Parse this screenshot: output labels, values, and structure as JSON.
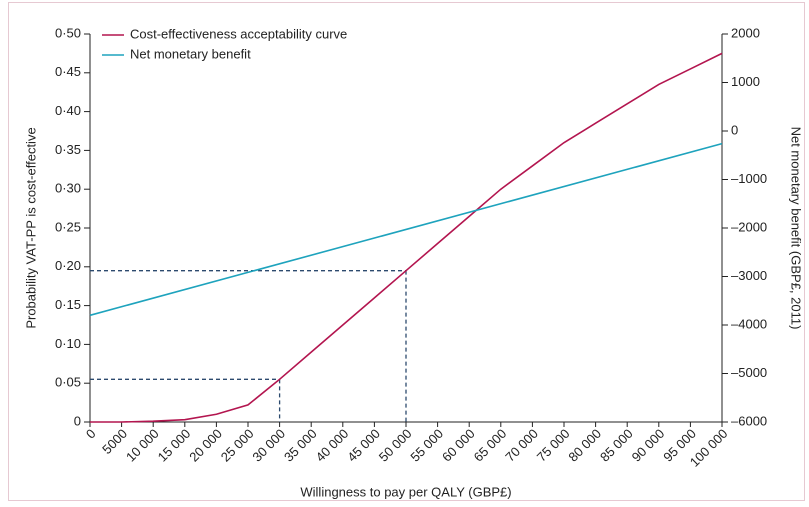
{
  "chart_data": {
    "type": "line",
    "xlabel": "Willingness to pay per QALY (GBP£)",
    "ylabel": "Probability VAT-PP is cost-effective",
    "y2label": "Net monetary benefit (GBP£, 2011)",
    "xlim": [
      0,
      100000
    ],
    "xticks": [
      0,
      5000,
      {
        "value": 10000,
        "label": "10 000"
      },
      {
        "value": 15000,
        "label": "15 000"
      },
      {
        "value": 20000,
        "label": "20 000"
      },
      {
        "value": 25000,
        "label": "25 000"
      },
      {
        "value": 30000,
        "label": "30 000"
      },
      {
        "value": 35000,
        "label": "35 000"
      },
      {
        "value": 40000,
        "label": "40 000"
      },
      {
        "value": 45000,
        "label": "45 000"
      },
      {
        "value": 50000,
        "label": "50 000"
      },
      {
        "value": 55000,
        "label": "55 000"
      },
      {
        "value": 60000,
        "label": "60 000"
      },
      {
        "value": 65000,
        "label": "65 000"
      },
      {
        "value": 70000,
        "label": "70 000"
      },
      {
        "value": 75000,
        "label": "75 000"
      },
      {
        "value": 80000,
        "label": "80 000"
      },
      {
        "value": 85000,
        "label": "85 000"
      },
      {
        "value": 90000,
        "label": "90 000"
      },
      {
        "value": 95000,
        "label": "95 000"
      },
      {
        "value": 100000,
        "label": "100 000"
      }
    ],
    "ylim": [
      0,
      0.5
    ],
    "yticks": [
      0,
      {
        "value": 0.05,
        "label": "0·05"
      },
      {
        "value": 0.1,
        "label": "0·10"
      },
      {
        "value": 0.15,
        "label": "0·15"
      },
      {
        "value": 0.2,
        "label": "0·20"
      },
      {
        "value": 0.25,
        "label": "0·25"
      },
      {
        "value": 0.3,
        "label": "0·30"
      },
      {
        "value": 0.35,
        "label": "0·35"
      },
      {
        "value": 0.4,
        "label": "0·40"
      },
      {
        "value": 0.45,
        "label": "0·45"
      },
      {
        "value": 0.5,
        "label": "0·50"
      }
    ],
    "y2lim": [
      -6000,
      2000
    ],
    "y2ticks": [
      {
        "value": -6000,
        "label": "–6000"
      },
      {
        "value": -5000,
        "label": "–5000"
      },
      {
        "value": -4000,
        "label": "–4000"
      },
      {
        "value": -3000,
        "label": "–3000"
      },
      {
        "value": -2000,
        "label": "–2000"
      },
      {
        "value": -1000,
        "label": "–1000"
      },
      0,
      1000,
      2000
    ],
    "legend": "upper left",
    "series": [
      {
        "name": "Cost-effectiveness acceptability curve",
        "color": "#b3154f",
        "x": [
          0,
          5000,
          10000,
          15000,
          20000,
          25000,
          30000,
          35000,
          40000,
          45000,
          50000,
          55000,
          60000,
          65000,
          70000,
          75000,
          80000,
          85000,
          90000,
          95000,
          100000
        ],
        "values": [
          0,
          0,
          0.001,
          0.003,
          0.01,
          0.022,
          0.055,
          0.09,
          0.125,
          0.16,
          0.195,
          0.23,
          0.265,
          0.3,
          0.33,
          0.36,
          0.385,
          0.41,
          0.435,
          0.455,
          0.475
        ]
      },
      {
        "name": "Net monetary benefit",
        "color": "#1ea3bd",
        "axis": "y2",
        "x": [
          0,
          100000
        ],
        "values": [
          -3800,
          -260
        ]
      }
    ],
    "reference_points": [
      {
        "x": 30000,
        "y": 0.055
      },
      {
        "x": 50000,
        "y": 0.195
      }
    ]
  }
}
